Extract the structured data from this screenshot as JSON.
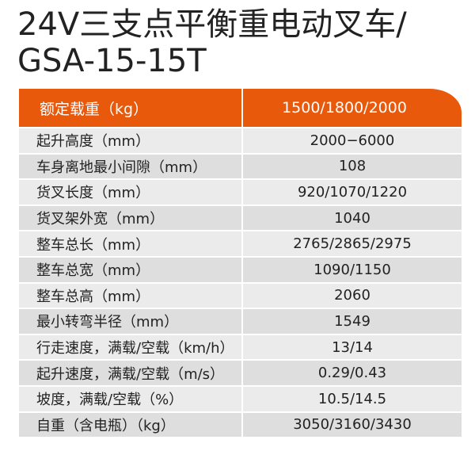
{
  "title_line1": "24V三支点平衡重电动叉车/",
  "title_line2": "GSA-15-15T",
  "accent_color": "#e8590c",
  "header": {
    "label": "额定载重（kg）",
    "value": "1500/1800/2000"
  },
  "rows": [
    {
      "label": "起升高度（mm）",
      "value": "2000−6000"
    },
    {
      "label": "车身离地最小间隙（mm）",
      "value": "108"
    },
    {
      "label": "货叉长度（mm）",
      "value": "920/1070/1220"
    },
    {
      "label": "货叉架外宽（mm）",
      "value": "1040"
    },
    {
      "label": "整车总长（mm）",
      "value": "2765/2865/2975"
    },
    {
      "label": "整车总宽（mm）",
      "value": "1090/1150"
    },
    {
      "label": "整车总高（mm）",
      "value": "2060"
    },
    {
      "label": "最小转弯半径（mm）",
      "value": "1549"
    },
    {
      "label": "行走速度，满载/空载（km/h）",
      "value": "13/14"
    },
    {
      "label": "起升速度，满载/空载（m/s）",
      "value": "0.29/0.43"
    },
    {
      "label": "坡度，满载/空载（%）",
      "value": "10.5/14.5"
    },
    {
      "label": "自重（含电瓶）（kg）",
      "value": "3050/3160/3430"
    }
  ]
}
